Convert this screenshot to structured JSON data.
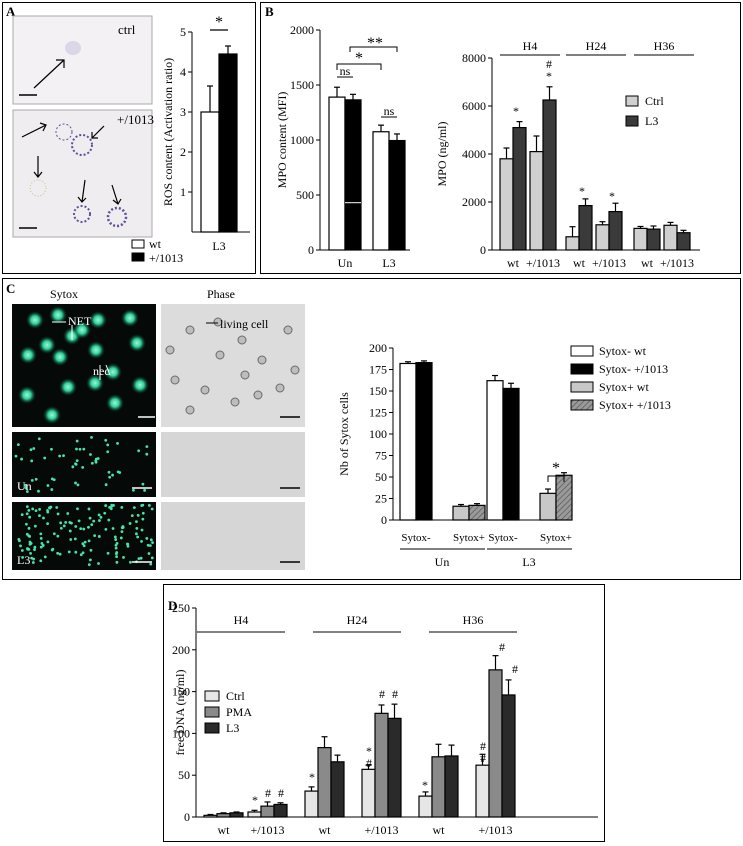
{
  "panels": {
    "A": "A",
    "B": "B",
    "C": "C",
    "D": "D"
  },
  "panelA": {
    "img_top_label": "ctrl",
    "img_bottom_label": "+/1013",
    "legend": [
      "wt",
      "+/1013"
    ],
    "chart_label": "L3"
  },
  "panelC": {
    "sytox_header": "Sytox",
    "phase_header": "Phase",
    "net_label": "NET",
    "nec_label": "nec",
    "living_label": "living cell",
    "un_label": "Un",
    "l3_label": "L3"
  },
  "chart_data": [
    {
      "id": "A_ros",
      "type": "bar",
      "ylabel": "ROS content (Activation ratio)",
      "ylim": [
        0,
        5
      ],
      "yticks": [
        1,
        2,
        3,
        4,
        5
      ],
      "group": "L3",
      "series": [
        {
          "name": "wt",
          "color": "#ffffff",
          "values": [
            3.0
          ],
          "errors": [
            0.65
          ]
        },
        {
          "name": "+/1013",
          "color": "#000000",
          "values": [
            4.45
          ],
          "errors": [
            0.2
          ]
        }
      ],
      "annotations": [
        {
          "text": "*",
          "between": [
            "wt",
            "+/1013"
          ]
        }
      ]
    },
    {
      "id": "B_mpo_content",
      "type": "bar",
      "ylabel": "MPO content (MFI)",
      "ylim": [
        0,
        2000
      ],
      "yticks": [
        0,
        500,
        1000,
        1500,
        2000
      ],
      "categories": [
        "Un",
        "L3"
      ],
      "series": [
        {
          "name": "wt",
          "color": "#ffffff",
          "values": [
            1390,
            1075
          ],
          "errors": [
            90,
            60
          ]
        },
        {
          "name": "+/1013",
          "color": "#000000",
          "values": [
            1365,
            995
          ],
          "errors": [
            50,
            60
          ]
        }
      ],
      "annotations": [
        "ns",
        "ns",
        "*",
        "**"
      ]
    },
    {
      "id": "B_mpo_conc",
      "type": "bar",
      "ylabel": "MPO (ng/ml)",
      "ylim": [
        0,
        8000
      ],
      "yticks": [
        0,
        2000,
        4000,
        6000,
        8000
      ],
      "timepoints": [
        "H4",
        "H24",
        "H36"
      ],
      "categories": [
        "wt",
        "+/1013",
        "wt",
        "+/1013",
        "wt",
        "+/1013"
      ],
      "series": [
        {
          "name": "Ctrl",
          "color": "#d0d0d0",
          "values": [
            3800,
            4100,
            550,
            1050,
            900,
            1030
          ],
          "errors": [
            450,
            650,
            420,
            130,
            80,
            120
          ]
        },
        {
          "name": "L3",
          "color": "#3a3a3a",
          "values": [
            5100,
            6250,
            1850,
            1600,
            870,
            720
          ],
          "errors": [
            250,
            550,
            280,
            350,
            130,
            100
          ]
        }
      ],
      "annotations": [
        "*",
        "*",
        "#",
        "*",
        "*"
      ]
    },
    {
      "id": "C_sytox",
      "type": "bar",
      "ylabel": "Nb of Sytox cells",
      "ylim": [
        0,
        200
      ],
      "yticks": [
        0,
        25,
        50,
        75,
        100,
        125,
        150,
        175,
        200
      ],
      "groups": [
        "Un",
        "L3"
      ],
      "subgroups": [
        "Sytox-",
        "Sytox+"
      ],
      "series": [
        {
          "name": "Sytox- wt",
          "color": "#ffffff",
          "values": [
            182,
            162
          ],
          "errors": [
            2,
            6
          ]
        },
        {
          "name": "Sytox- +/1013",
          "color": "#000000",
          "values": [
            183,
            153
          ],
          "errors": [
            2,
            6
          ]
        },
        {
          "name": "Sytox+ wt",
          "color": "#c8c8c8",
          "values": [
            16,
            31
          ],
          "errors": [
            2,
            5
          ]
        },
        {
          "name": "Sytox+ +/1013",
          "color": "#8a8a8a",
          "values": [
            17,
            52
          ],
          "errors": [
            2,
            3
          ]
        }
      ],
      "annotations": [
        "*"
      ]
    },
    {
      "id": "D_free_dna",
      "type": "bar",
      "ylabel": "free DNA (ng/ml)",
      "ylim": [
        0,
        250
      ],
      "yticks": [
        0,
        50,
        100,
        150,
        200,
        250
      ],
      "timepoints": [
        "H4",
        "H24",
        "H36"
      ],
      "categories": [
        "wt",
        "+/1013",
        "wt",
        "+/1013",
        "wt",
        "+/1013"
      ],
      "series": [
        {
          "name": "Ctrl",
          "color": "#e6e6e6",
          "values": [
            2,
            6,
            31,
            57,
            25,
            62
          ],
          "errors": [
            1,
            2,
            5,
            5,
            5,
            13
          ]
        },
        {
          "name": "PMA",
          "color": "#8a8a8a",
          "values": [
            4,
            13,
            83,
            124,
            72,
            176
          ],
          "errors": [
            1,
            5,
            13,
            10,
            15,
            17
          ]
        },
        {
          "name": "L3",
          "color": "#2a2a2a",
          "values": [
            5,
            15,
            66,
            118,
            73,
            146
          ],
          "errors": [
            1,
            2,
            8,
            17,
            13,
            18
          ]
        }
      ],
      "annotations": [
        "*",
        "#",
        "#",
        "*",
        "#",
        "#",
        "#",
        "*",
        "*",
        "#",
        "#",
        "#"
      ]
    }
  ]
}
